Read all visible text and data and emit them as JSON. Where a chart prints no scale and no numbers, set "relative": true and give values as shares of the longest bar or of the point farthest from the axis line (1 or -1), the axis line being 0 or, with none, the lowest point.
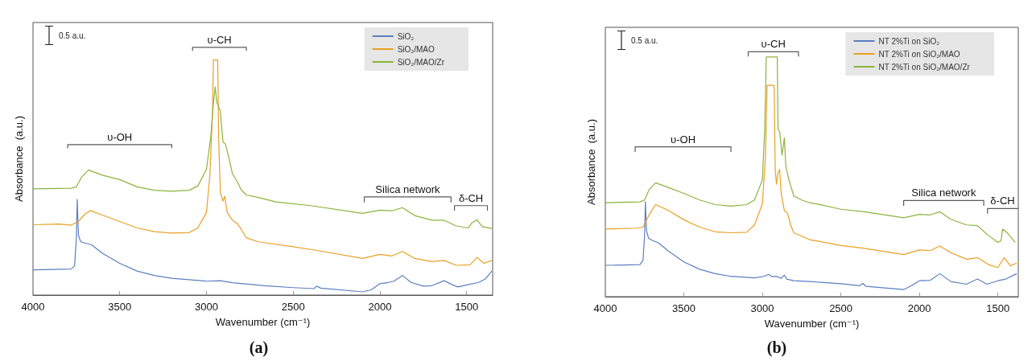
{
  "chart_data": [
    {
      "type": "line",
      "title": "(a)",
      "xlabel": "Wavenumber (cm⁻¹)",
      "ylabel": "Absorbance  (a.u.)",
      "relative": true,
      "xlim": [
        4000,
        1350
      ],
      "xticks": [
        4000,
        3500,
        3000,
        2500,
        2000,
        1500
      ],
      "tick_labels": "x",
      "legend": "top right",
      "marker": "none",
      "annotations": [
        "0.5 a.u.",
        {
          "text": "υ-OH",
          "x": 3500,
          "y": 0.607
        },
        {
          "text": "υ-CH",
          "x": 2925,
          "y": 1.0
        },
        {
          "text": "Silica network",
          "x": 1840,
          "y": 0.396
        },
        {
          "text": "δ-CH",
          "x": 1475,
          "y": 0.361
        }
      ],
      "series": [
        {
          "color": "#595959",
          "x": [
            3800,
            3800,
            3200,
            3200
          ],
          "values": [
            0.593,
            0.607,
            0.607,
            0.593
          ]
        },
        {
          "color": "#595959",
          "x": [
            3080,
            3080,
            2770,
            2770
          ],
          "values": [
            0.986,
            1.0,
            1.0,
            0.986
          ]
        },
        {
          "color": "#595959",
          "x": [
            2090,
            2090,
            1590,
            1590
          ],
          "values": [
            0.374,
            0.396,
            0.396,
            0.374
          ]
        },
        {
          "color": "#595959",
          "x": [
            1570,
            1570,
            1380,
            1380
          ],
          "values": [
            0.341,
            0.361,
            0.361,
            0.341
          ]
        },
        {
          "name": "SiO₂",
          "color": "#5b7fbf",
          "x": [
            4000,
            3780,
            3760,
            3750,
            3745,
            3738,
            3725,
            3700,
            3660,
            3600,
            3500,
            3400,
            3300,
            3200,
            3000,
            2920,
            2850,
            2665,
            2500,
            2380,
            2365,
            2340,
            2100,
            2050,
            2000,
            1950,
            1920,
            1870,
            1820,
            1750,
            1700,
            1630,
            1580,
            1550,
            1500,
            1430,
            1390,
            1355
          ],
          "values": [
            0.102,
            0.105,
            0.118,
            0.231,
            0.386,
            0.241,
            0.215,
            0.21,
            0.202,
            0.169,
            0.128,
            0.097,
            0.079,
            0.068,
            0.056,
            0.058,
            0.05,
            0.038,
            0.03,
            0.026,
            0.036,
            0.028,
            0.013,
            0.021,
            0.046,
            0.051,
            0.056,
            0.079,
            0.051,
            0.036,
            0.038,
            0.058,
            0.041,
            0.033,
            0.041,
            0.051,
            0.066,
            0.097
          ]
        },
        {
          "name": "SiO₂/MAO",
          "color": "#e9a024",
          "x": [
            4000,
            3850,
            3780,
            3740,
            3700,
            3670,
            3600,
            3500,
            3400,
            3300,
            3200,
            3100,
            3050,
            3000,
            2980,
            2965,
            2960,
            2935,
            2930,
            2920,
            2905,
            2895,
            2880,
            2850,
            2820,
            2800,
            2770,
            2700,
            2500,
            2370,
            2100,
            2000,
            1930,
            1870,
            1800,
            1700,
            1630,
            1560,
            1480,
            1440,
            1400,
            1355
          ],
          "values": [
            0.284,
            0.287,
            0.282,
            0.297,
            0.327,
            0.341,
            0.323,
            0.297,
            0.271,
            0.256,
            0.25,
            0.252,
            0.271,
            0.333,
            0.486,
            0.742,
            0.949,
            0.949,
            0.639,
            0.415,
            0.379,
            0.399,
            0.333,
            0.302,
            0.287,
            0.266,
            0.231,
            0.215,
            0.195,
            0.181,
            0.148,
            0.164,
            0.158,
            0.176,
            0.148,
            0.135,
            0.14,
            0.12,
            0.122,
            0.152,
            0.128,
            0.14
          ]
        },
        {
          "name": "SiO₂/MAO/Zr",
          "color": "#8cb33c",
          "x": [
            4000,
            3780,
            3750,
            3720,
            3680,
            3600,
            3500,
            3400,
            3300,
            3200,
            3100,
            3050,
            3000,
            2975,
            2960,
            2950,
            2940,
            2920,
            2905,
            2890,
            2865,
            2850,
            2820,
            2800,
            2770,
            2700,
            2600,
            2400,
            2100,
            2000,
            1930,
            1870,
            1800,
            1700,
            1630,
            1560,
            1490,
            1470,
            1440,
            1410,
            1355
          ],
          "values": [
            0.429,
            0.431,
            0.437,
            0.476,
            0.505,
            0.484,
            0.466,
            0.437,
            0.423,
            0.419,
            0.423,
            0.44,
            0.507,
            0.639,
            0.772,
            0.84,
            0.778,
            0.742,
            0.619,
            0.609,
            0.537,
            0.489,
            0.455,
            0.425,
            0.404,
            0.394,
            0.376,
            0.361,
            0.33,
            0.343,
            0.34,
            0.353,
            0.321,
            0.302,
            0.302,
            0.279,
            0.271,
            0.291,
            0.304,
            0.276,
            0.269
          ]
        }
      ]
    },
    {
      "type": "line",
      "title": "(b)",
      "xlabel": "Wavenumber (cm⁻¹)",
      "ylabel": "Absorbance  (a.u.)",
      "relative": true,
      "xlim": [
        4000,
        1370
      ],
      "xticks": [
        4000,
        3500,
        3000,
        2500,
        2000,
        1500
      ],
      "tick_labels": "x",
      "legend": "top right",
      "marker": "none",
      "annotations": [
        "0.5 a.u.",
        {
          "text": "υ-OH",
          "x": 3505,
          "y": 0.612
        },
        {
          "text": "υ-CH",
          "x": 2930,
          "y": 1.0
        },
        {
          "text": "Silica network",
          "x": 1845,
          "y": 0.393
        },
        {
          "text": "δ-CH",
          "x": 1470,
          "y": 0.36
        }
      ],
      "series": [
        {
          "color": "#595959",
          "x": [
            3810,
            3810,
            3200,
            3200
          ],
          "values": [
            0.591,
            0.612,
            0.612,
            0.591
          ]
        },
        {
          "color": "#595959",
          "x": [
            3090,
            3090,
            2770,
            2770
          ],
          "values": [
            0.981,
            1.0,
            1.0,
            0.981
          ]
        },
        {
          "color": "#595959",
          "x": [
            2100,
            2100,
            1590,
            1590
          ],
          "values": [
            0.371,
            0.393,
            0.393,
            0.371
          ]
        },
        {
          "color": "#595959",
          "x": [
            1566,
            1566,
            1370
          ],
          "values": [
            0.339,
            0.36,
            0.36
          ]
        },
        {
          "name": "NT 2%Ti on SiO₂",
          "color": "#5b7fbf",
          "x": [
            4000,
            3780,
            3760,
            3750,
            3745,
            3738,
            3725,
            3700,
            3660,
            3600,
            3500,
            3400,
            3300,
            3200,
            3050,
            2990,
            2960,
            2940,
            2910,
            2880,
            2860,
            2845,
            2800,
            2700,
            2500,
            2380,
            2360,
            2340,
            2100,
            2050,
            2000,
            1930,
            1870,
            1800,
            1700,
            1630,
            1570,
            1500,
            1450,
            1380
          ],
          "values": [
            0.128,
            0.131,
            0.148,
            0.25,
            0.388,
            0.271,
            0.239,
            0.23,
            0.219,
            0.187,
            0.142,
            0.112,
            0.094,
            0.083,
            0.077,
            0.083,
            0.091,
            0.082,
            0.083,
            0.075,
            0.088,
            0.072,
            0.065,
            0.062,
            0.053,
            0.045,
            0.054,
            0.042,
            0.029,
            0.045,
            0.065,
            0.067,
            0.094,
            0.062,
            0.051,
            0.072,
            0.051,
            0.065,
            0.072,
            0.094
          ]
        },
        {
          "name": "NT 2%Ti on SiO₂/MAO",
          "color": "#e9a024",
          "x": [
            4000,
            3800,
            3760,
            3720,
            3680,
            3600,
            3500,
            3400,
            3300,
            3200,
            3100,
            3050,
            3000,
            2980,
            2970,
            2925,
            2918,
            2910,
            2900,
            2890,
            2880,
            2860,
            2840,
            2820,
            2800,
            2700,
            2640,
            2500,
            2360,
            2100,
            2000,
            1930,
            1870,
            1800,
            1700,
            1630,
            1560,
            1500,
            1460,
            1420,
            1380
          ],
          "values": [
            0.276,
            0.28,
            0.284,
            0.336,
            0.376,
            0.353,
            0.314,
            0.284,
            0.265,
            0.261,
            0.263,
            0.293,
            0.379,
            0.573,
            0.863,
            0.863,
            0.519,
            0.459,
            0.508,
            0.519,
            0.422,
            0.352,
            0.341,
            0.293,
            0.261,
            0.233,
            0.226,
            0.209,
            0.198,
            0.172,
            0.191,
            0.188,
            0.207,
            0.18,
            0.153,
            0.159,
            0.131,
            0.119,
            0.159,
            0.126,
            0.137
          ]
        },
        {
          "name": "NT 2%Ti on SiO₂/MAO/Zr",
          "color": "#8cb33c",
          "x": [
            4000,
            3780,
            3750,
            3720,
            3680,
            3600,
            3500,
            3400,
            3300,
            3200,
            3100,
            3050,
            3000,
            2985,
            2975,
            2905,
            2900,
            2890,
            2875,
            2860,
            2850,
            2830,
            2800,
            2750,
            2700,
            2640,
            2500,
            2350,
            2100,
            2000,
            1930,
            1870,
            1800,
            1700,
            1630,
            1560,
            1500,
            1480,
            1470,
            1440,
            1390
          ],
          "values": [
            0.384,
            0.387,
            0.395,
            0.438,
            0.465,
            0.446,
            0.422,
            0.395,
            0.376,
            0.37,
            0.376,
            0.395,
            0.476,
            0.681,
            0.979,
            0.979,
            0.681,
            0.675,
            0.578,
            0.648,
            0.53,
            0.476,
            0.411,
            0.395,
            0.384,
            0.377,
            0.357,
            0.347,
            0.322,
            0.336,
            0.334,
            0.347,
            0.316,
            0.293,
            0.29,
            0.25,
            0.222,
            0.228,
            0.276,
            0.261,
            0.222
          ]
        }
      ]
    }
  ]
}
